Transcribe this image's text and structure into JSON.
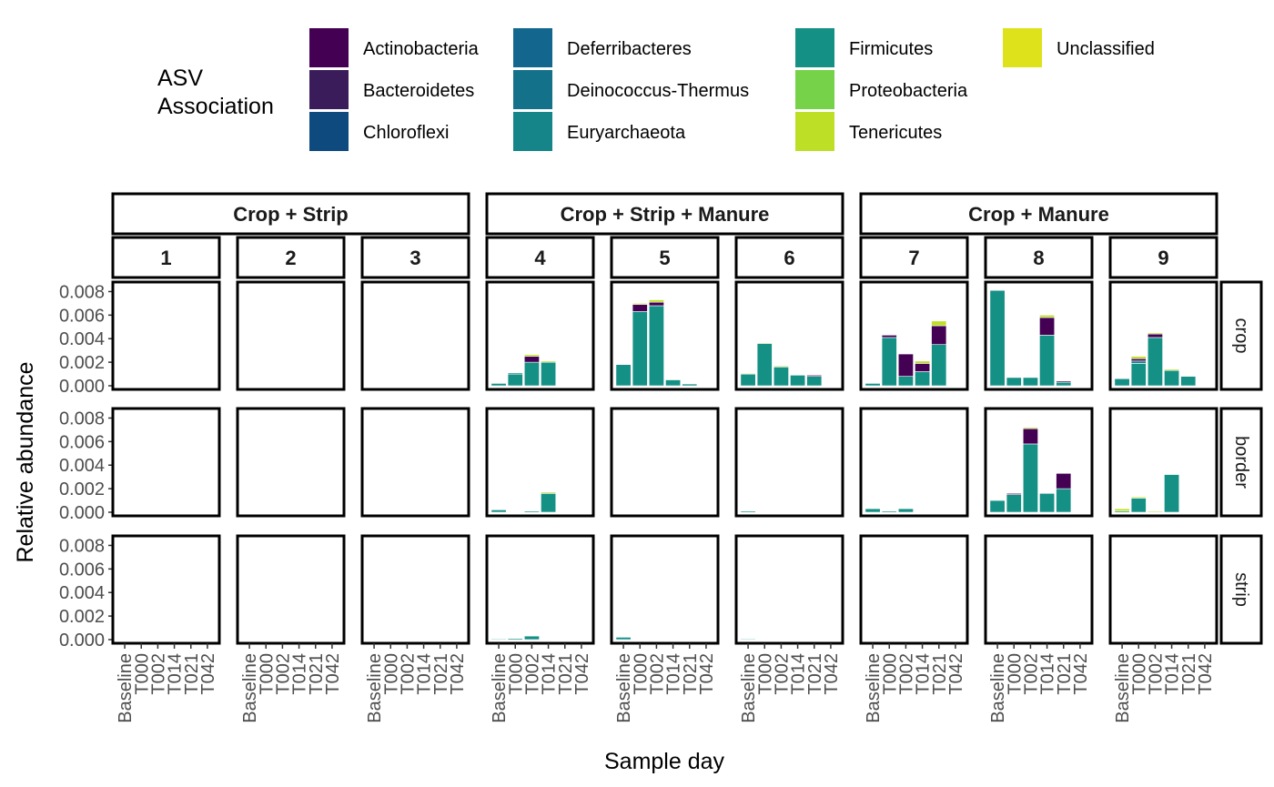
{
  "chart_data": {
    "type": "bar",
    "stacked": true,
    "xlabel": "Sample day",
    "ylabel": "Relative abundance",
    "ylim": [
      0,
      0.0085
    ],
    "yticks": [
      0.0,
      0.002,
      0.004,
      0.006,
      0.008
    ],
    "ytick_labels": [
      "0.000",
      "0.002",
      "0.004",
      "0.006",
      "0.008"
    ],
    "categories": [
      "Baseline",
      "T000",
      "T002",
      "T014",
      "T021",
      "T042"
    ],
    "legend": {
      "title_lines": [
        "ASV",
        "Association"
      ],
      "position": "top",
      "entries": [
        {
          "name": "Actinobacteria",
          "color": "#440154"
        },
        {
          "name": "Bacteroidetes",
          "color": "#3B1C5A"
        },
        {
          "name": "Chloroflexi",
          "color": "#0E4A7E"
        },
        {
          "name": "Deferribacteres",
          "color": "#13678E"
        },
        {
          "name": "Deinococcus-Thermus",
          "color": "#13728A"
        },
        {
          "name": "Euryarchaeota",
          "color": "#158589"
        },
        {
          "name": "Firmicutes",
          "color": "#159085"
        },
        {
          "name": "Proteobacteria",
          "color": "#76D248"
        },
        {
          "name": "Tenericutes",
          "color": "#BDDF26"
        },
        {
          "name": "Unclassified",
          "color": "#DDE21B"
        }
      ]
    },
    "treatments": [
      {
        "label": "Crop + Strip",
        "plots": [
          "1",
          "2",
          "3"
        ]
      },
      {
        "label": "Crop + Strip + Manure",
        "plots": [
          "4",
          "5",
          "6"
        ]
      },
      {
        "label": "Crop + Manure",
        "plots": [
          "7",
          "8",
          "9"
        ]
      }
    ],
    "rows": [
      "crop",
      "border",
      "strip"
    ],
    "bars": {
      "crop": {
        "4": [
          [
            0.0002,
            0,
            0,
            0,
            0
          ],
          [
            0.001,
            0.0001,
            0,
            0,
            0
          ],
          [
            0.002,
            0,
            0,
            0.0005,
            0.00015
          ],
          [
            0.002,
            0,
            0,
            0,
            0.0001
          ],
          null,
          null
        ],
        "5": [
          [
            0.0018,
            0,
            0,
            0,
            0
          ],
          [
            0.0063,
            0,
            0,
            0.0006,
            0.0001
          ],
          [
            0.0068,
            0,
            0,
            0.0003,
            0.0002
          ],
          [
            0.0005,
            0,
            0,
            0,
            0
          ],
          [
            0.00015,
            0,
            0,
            0,
            0
          ],
          null
        ],
        "6": [
          [
            0.001,
            0,
            0,
            0,
            5e-05
          ],
          [
            0.0036,
            0,
            0,
            0,
            5e-05
          ],
          [
            0.0016,
            0,
            0,
            0,
            8e-05
          ],
          [
            0.0009,
            0,
            0,
            0,
            0
          ],
          [
            0.0008,
            0,
            0,
            0.0001,
            0
          ],
          null
        ],
        "7": [
          [
            0.0002,
            0,
            0,
            0,
            0
          ],
          [
            0.0041,
            0,
            0,
            0.0002,
            0
          ],
          [
            0.0008,
            0,
            0,
            0.0019,
            0
          ],
          [
            0.0012,
            0,
            0,
            0.0007,
            0.0002
          ],
          [
            0.0035,
            0,
            0,
            0.0016,
            0.0004
          ],
          null
        ],
        "8": [
          [
            0.0081,
            0,
            0,
            0,
            0
          ],
          [
            0.0007,
            0,
            0,
            0,
            0
          ],
          [
            0.0007,
            0,
            0,
            0,
            0
          ],
          [
            0.0043,
            0,
            0,
            0.0015,
            0.0002
          ],
          [
            0.0003,
            0,
            0,
            0.0001,
            0
          ],
          null
        ],
        "9": [
          [
            0.0006,
            0,
            0,
            0,
            0
          ],
          [
            0.0019,
            0.0002,
            0,
            0.0002,
            0.0002
          ],
          [
            0.0041,
            0,
            0,
            0.0003,
            0.0001
          ],
          [
            0.0013,
            0,
            0,
            0,
            0.0001
          ],
          [
            0.0008,
            0,
            0,
            0,
            0
          ],
          null
        ]
      },
      "border": {
        "4": [
          [
            0.0002,
            0,
            0,
            0,
            0
          ],
          null,
          [
            0.0001,
            0,
            0,
            0,
            0
          ],
          [
            0.0016,
            0,
            0,
            0,
            0.0001
          ],
          null,
          null
        ],
        "6": [
          [
            0.0001,
            0,
            0,
            0,
            0
          ],
          null,
          null,
          null,
          null,
          null
        ],
        "7": [
          [
            0.0003,
            0,
            0,
            0,
            0
          ],
          [
            0.0001,
            0,
            0,
            0,
            0
          ],
          [
            0.0003,
            0,
            0,
            0,
            0
          ],
          null,
          null,
          null
        ],
        "8": [
          [
            0.001,
            0,
            0,
            0,
            0
          ],
          [
            0.0015,
            0,
            0,
            0.0001,
            0
          ],
          [
            0.0058,
            0,
            0,
            0.0013,
            0.0001
          ],
          [
            0.0016,
            0,
            0,
            0,
            0
          ],
          [
            0.002,
            0,
            0,
            0.0013,
            0
          ],
          null
        ],
        "9": [
          [
            0.0001,
            0,
            0,
            0,
            0.0002
          ],
          [
            0.0012,
            0,
            0,
            0,
            0.0001
          ],
          [
            0,
            0,
            0,
            0,
            8e-05
          ],
          [
            0.0032,
            0,
            0,
            0,
            0
          ],
          null,
          null
        ]
      },
      "strip": {
        "4": [
          [
            5e-05,
            0,
            0,
            0,
            0
          ],
          [
            0.0001,
            0,
            0,
            0,
            0
          ],
          [
            0.0003,
            0,
            0,
            0,
            0
          ],
          null,
          null,
          null
        ],
        "5": [
          [
            0.0002,
            0,
            0,
            0,
            0
          ],
          null,
          null,
          null,
          null,
          null
        ],
        "6": [
          [
            5e-05,
            0,
            0,
            0,
            0
          ],
          null,
          null,
          null,
          null,
          null
        ]
      }
    }
  }
}
